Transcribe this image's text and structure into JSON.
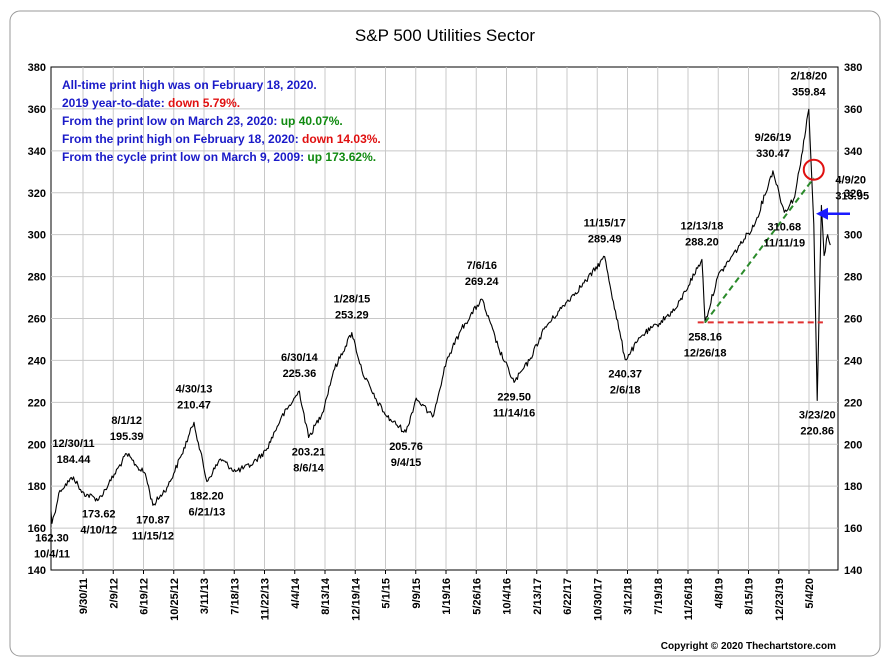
{
  "chart_data": {
    "type": "line",
    "title": "S&P 500 Utilities Sector",
    "ylim": [
      140,
      380
    ],
    "yticks": [
      140,
      160,
      180,
      200,
      220,
      240,
      260,
      280,
      300,
      320,
      340,
      360,
      380
    ],
    "x_start": "2011-09-30",
    "x_end": "2020-06-15",
    "x_tick_labels": [
      "9/30/11",
      "2/9/12",
      "6/19/12",
      "10/25/12",
      "3/11/13",
      "7/18/13",
      "11/22/13",
      "4/4/14",
      "8/13/14",
      "12/19/14",
      "5/1/15",
      "9/9/15",
      "1/19/16",
      "5/26/16",
      "10/4/16",
      "2/13/17",
      "6/22/17",
      "10/30/17",
      "3/12/18",
      "7/19/18",
      "11/26/18",
      "4/8/19",
      "8/15/19",
      "12/23/19",
      "5/4/20"
    ],
    "series": [
      {
        "name": "S&P 500 Utilities Sector",
        "color": "#000000",
        "points": [
          [
            "2011-09-30",
            168
          ],
          [
            "2011-10-04",
            162.3
          ],
          [
            "2011-11-05",
            178
          ],
          [
            "2011-12-30",
            184.44
          ],
          [
            "2012-02-01",
            177
          ],
          [
            "2012-04-10",
            173.62
          ],
          [
            "2012-05-20",
            181
          ],
          [
            "2012-08-01",
            195.39
          ],
          [
            "2012-09-15",
            189
          ],
          [
            "2012-10-15",
            186
          ],
          [
            "2012-11-15",
            170.87
          ],
          [
            "2013-01-15",
            180
          ],
          [
            "2013-03-11",
            195
          ],
          [
            "2013-04-30",
            210.47
          ],
          [
            "2013-06-21",
            182.2
          ],
          [
            "2013-08-15",
            193
          ],
          [
            "2013-10-15",
            187
          ],
          [
            "2013-12-15",
            190
          ],
          [
            "2014-02-15",
            197
          ],
          [
            "2014-04-15",
            212
          ],
          [
            "2014-06-30",
            225.36
          ],
          [
            "2014-08-06",
            203.21
          ],
          [
            "2014-10-01",
            215
          ],
          [
            "2014-11-15",
            235
          ],
          [
            "2015-01-28",
            253.29
          ],
          [
            "2015-03-10",
            235
          ],
          [
            "2015-05-01",
            222
          ],
          [
            "2015-06-20",
            213
          ],
          [
            "2015-09-04",
            205.76
          ],
          [
            "2015-10-15",
            222
          ],
          [
            "2015-12-20",
            213
          ],
          [
            "2016-02-15",
            240
          ],
          [
            "2016-04-15",
            255
          ],
          [
            "2016-07-06",
            269.24
          ],
          [
            "2016-09-15",
            245
          ],
          [
            "2016-11-14",
            229.5
          ],
          [
            "2017-01-15",
            240
          ],
          [
            "2017-03-15",
            255
          ],
          [
            "2017-06-15",
            268
          ],
          [
            "2017-09-01",
            278
          ],
          [
            "2017-11-15",
            289.49
          ],
          [
            "2017-12-20",
            268
          ],
          [
            "2018-02-06",
            240.37
          ],
          [
            "2018-04-15",
            252
          ],
          [
            "2018-06-15",
            257
          ],
          [
            "2018-09-01",
            265
          ],
          [
            "2018-12-13",
            288.2
          ],
          [
            "2018-12-26",
            258.16
          ],
          [
            "2019-02-15",
            280
          ],
          [
            "2019-05-15",
            295
          ],
          [
            "2019-07-15",
            305
          ],
          [
            "2019-09-26",
            330.47
          ],
          [
            "2019-11-11",
            310.68
          ],
          [
            "2019-12-23",
            318
          ],
          [
            "2020-01-20",
            338
          ],
          [
            "2020-02-18",
            359.84
          ],
          [
            "2020-03-09",
            305
          ],
          [
            "2020-03-23",
            220.86
          ],
          [
            "2020-04-09",
            313.95
          ],
          [
            "2020-04-20",
            290
          ],
          [
            "2020-05-04",
            300
          ],
          [
            "2020-05-15",
            295
          ]
        ]
      }
    ],
    "reference_lines": [
      {
        "type": "horizontal",
        "value": 258.16,
        "from": "2018-11-26",
        "to": "2020-04-15",
        "color": "#e03030",
        "style": "dashed"
      },
      {
        "type": "trend",
        "from": [
          "2018-12-26",
          258.16
        ],
        "to": [
          "2020-03-09",
          327
        ],
        "color": "#2a8a2a",
        "style": "dashed"
      }
    ],
    "highlight_circle": {
      "x": "2020-03-09",
      "y": 331
    },
    "arrow": {
      "y": 310,
      "color": "#1a1aff",
      "direction": "left"
    },
    "annotations": [
      {
        "date": "10/4/11",
        "value": "162.30",
        "x": "2011-10-04",
        "y": 162.3,
        "pos": "below"
      },
      {
        "date": "12/30/11",
        "value": "184.44",
        "x": "2011-12-30",
        "y": 184.44,
        "pos": "above"
      },
      {
        "date": "4/10/12",
        "value": "173.62",
        "x": "2012-04-10",
        "y": 173.62,
        "pos": "below"
      },
      {
        "date": "8/1/12",
        "value": "195.39",
        "x": "2012-08-01",
        "y": 195.39,
        "pos": "above"
      },
      {
        "date": "11/15/12",
        "value": "170.87",
        "x": "2012-11-15",
        "y": 170.87,
        "pos": "below"
      },
      {
        "date": "4/30/13",
        "value": "210.47",
        "x": "2013-04-30",
        "y": 210.47,
        "pos": "above"
      },
      {
        "date": "6/21/13",
        "value": "182.20",
        "x": "2013-06-21",
        "y": 182.2,
        "pos": "below"
      },
      {
        "date": "6/30/14",
        "value": "225.36",
        "x": "2014-06-30",
        "y": 225.36,
        "pos": "above"
      },
      {
        "date": "8/6/14",
        "value": "203.21",
        "x": "2014-08-06",
        "y": 203.21,
        "pos": "below"
      },
      {
        "date": "1/28/15",
        "value": "253.29",
        "x": "2015-01-28",
        "y": 253.29,
        "pos": "above"
      },
      {
        "date": "9/4/15",
        "value": "205.76",
        "x": "2015-09-04",
        "y": 205.76,
        "pos": "below"
      },
      {
        "date": "7/6/16",
        "value": "269.24",
        "x": "2016-07-06",
        "y": 269.24,
        "pos": "above"
      },
      {
        "date": "11/14/16",
        "value": "229.50",
        "x": "2016-11-14",
        "y": 229.5,
        "pos": "below"
      },
      {
        "date": "11/15/17",
        "value": "289.49",
        "x": "2017-11-15",
        "y": 289.49,
        "pos": "above"
      },
      {
        "date": "2/6/18",
        "value": "240.37",
        "x": "2018-02-06",
        "y": 240.37,
        "pos": "below"
      },
      {
        "date": "12/13/18",
        "value": "288.20",
        "x": "2018-12-13",
        "y": 288.2,
        "pos": "above"
      },
      {
        "date": "12/26/18",
        "value": "258.16",
        "x": "2018-12-26",
        "y": 258.16,
        "pos": "below"
      },
      {
        "date": "9/26/19",
        "value": "330.47",
        "x": "2019-09-26",
        "y": 330.47,
        "pos": "above"
      },
      {
        "date": "11/11/19",
        "value": "310.68",
        "x": "2019-11-11",
        "y": 310.68,
        "pos": "below"
      },
      {
        "date": "2/18/20",
        "value": "359.84",
        "x": "2020-02-18",
        "y": 359.84,
        "pos": "above"
      },
      {
        "date": "4/9/20",
        "value": "313.95",
        "x": "2020-04-09",
        "y": 313.95,
        "pos": "right"
      },
      {
        "date": "3/23/20",
        "value": "220.86",
        "x": "2020-03-23",
        "y": 220.86,
        "pos": "below"
      }
    ],
    "info_box": [
      {
        "text": "All-time print high was on February 18, 2020.",
        "highlight": "",
        "color": ""
      },
      {
        "text": "2019 year-to-date:",
        "highlight": "down 5.79%.",
        "color": "#e01010"
      },
      {
        "text": "From the print low on March 23, 2020:",
        "highlight": "up 40.07%.",
        "color": "#108a10"
      },
      {
        "text": "From the print high on February 18, 2020:",
        "highlight": "down 14.03%.",
        "color": "#e01010"
      },
      {
        "text": "From the cycle print low on March 9, 2009:",
        "highlight": "up 173.62%.",
        "color": "#108a10"
      }
    ],
    "copyright": "Copyright © 2020 Thechartstore.com"
  }
}
